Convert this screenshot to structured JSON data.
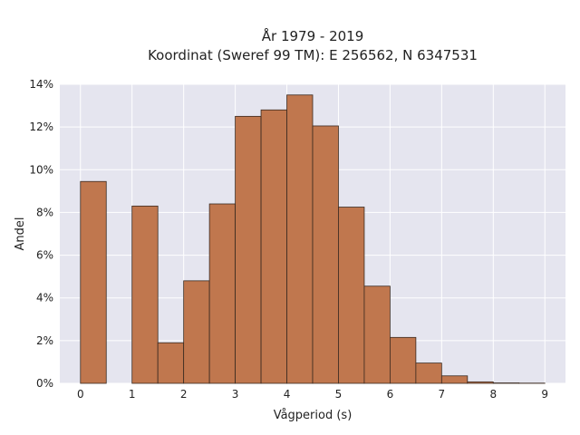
{
  "chart_data": {
    "type": "bar",
    "title_line1": "År 1979 - 2019",
    "title_line2": "Koordinat (Sweref 99 TM): E 256562, N 6347531",
    "xlabel": "Vågperiod (s)",
    "ylabel": "Andel",
    "xlim": [
      -0.4,
      9.4
    ],
    "ylim": [
      0,
      14
    ],
    "xticks": [
      0,
      1,
      2,
      3,
      4,
      5,
      6,
      7,
      8,
      9
    ],
    "yticks": [
      0,
      2,
      4,
      6,
      8,
      10,
      12,
      14
    ],
    "ytick_suffix": "%",
    "grid": true,
    "bar_color": "#c0774e",
    "bar_edge_color": "#3a2a20",
    "background_color": "#e5e5ef",
    "bins": [
      {
        "x0": 0.0,
        "x1": 0.5,
        "value": 9.45
      },
      {
        "x0": 1.0,
        "x1": 1.5,
        "value": 8.3
      },
      {
        "x0": 1.5,
        "x1": 2.0,
        "value": 1.9
      },
      {
        "x0": 2.0,
        "x1": 2.5,
        "value": 4.8
      },
      {
        "x0": 2.5,
        "x1": 3.0,
        "value": 8.4
      },
      {
        "x0": 3.0,
        "x1": 3.5,
        "value": 12.5
      },
      {
        "x0": 3.5,
        "x1": 4.0,
        "value": 12.8
      },
      {
        "x0": 4.0,
        "x1": 4.5,
        "value": 13.5
      },
      {
        "x0": 4.5,
        "x1": 5.0,
        "value": 12.05
      },
      {
        "x0": 5.0,
        "x1": 5.5,
        "value": 8.25
      },
      {
        "x0": 5.5,
        "x1": 6.0,
        "value": 4.55
      },
      {
        "x0": 6.0,
        "x1": 6.5,
        "value": 2.15
      },
      {
        "x0": 6.5,
        "x1": 7.0,
        "value": 0.95
      },
      {
        "x0": 7.0,
        "x1": 7.5,
        "value": 0.35
      },
      {
        "x0": 7.5,
        "x1": 8.0,
        "value": 0.07
      },
      {
        "x0": 8.0,
        "x1": 8.5,
        "value": 0.02
      },
      {
        "x0": 8.5,
        "x1": 9.0,
        "value": 0.01
      }
    ]
  }
}
